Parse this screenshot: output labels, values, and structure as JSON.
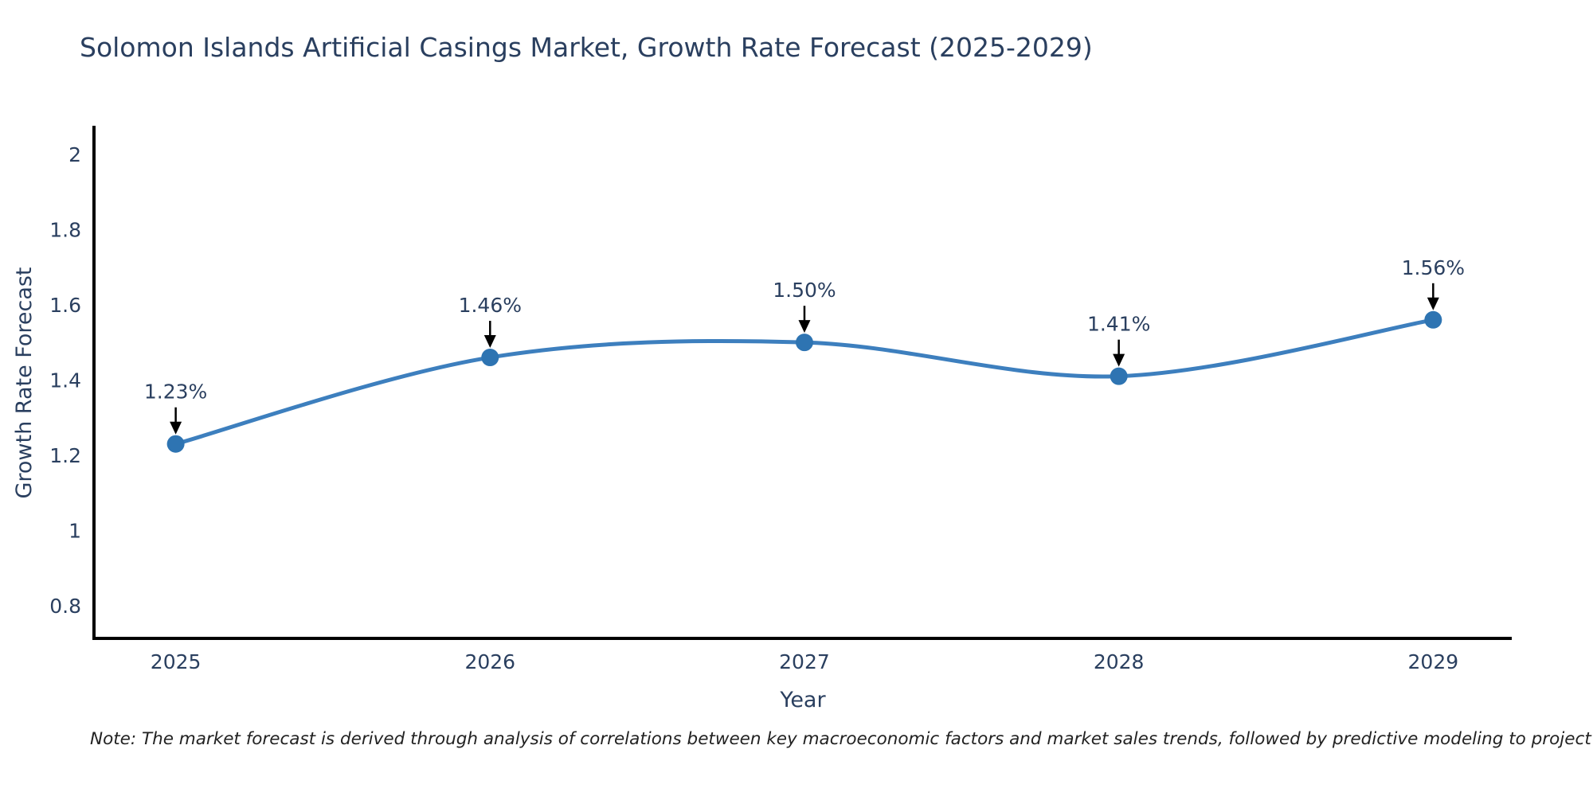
{
  "title": "Solomon Islands Artificial Casings Market, Growth Rate Forecast (2025-2029)",
  "note": "Note: The market forecast is derived through analysis of correlations between key macroeconomic factors and market sales trends, followed by predictive modeling to project future sales",
  "chart_data": {
    "type": "line",
    "title": "Solomon Islands Artificial Casings Market, Growth Rate Forecast (2025-2029)",
    "xlabel": "Year",
    "ylabel": "Growth Rate Forecast",
    "x": [
      2025,
      2026,
      2027,
      2028,
      2029
    ],
    "x_tick_labels": [
      "2025",
      "2026",
      "2027",
      "2028",
      "2029"
    ],
    "series": [
      {
        "name": "Growth Rate Forecast",
        "values": [
          1.23,
          1.46,
          1.5,
          1.41,
          1.56
        ],
        "point_labels": [
          "1.23%",
          "1.46%",
          "1.50%",
          "1.41%",
          "1.56%"
        ]
      }
    ],
    "y_ticks": [
      0.8,
      1,
      1.2,
      1.4,
      1.6,
      1.8,
      2
    ],
    "y_tick_labels": [
      "0.8",
      "1",
      "1.2",
      "1.4",
      "1.6",
      "1.8",
      "2"
    ],
    "xlim": [
      2024.74,
      2029.25
    ],
    "ylim": [
      0.713,
      2.076
    ],
    "line_shape": "spline",
    "grid": false,
    "legend": "none",
    "annotations_have_arrows": true,
    "colors": {
      "line": "#3d7fbe",
      "marker": "#2e74b2",
      "axis_line": "#000000",
      "text": "#2a3f5f",
      "annotation_arrow": "#000000",
      "note_text": "#222222",
      "background": "#ffffff"
    }
  }
}
